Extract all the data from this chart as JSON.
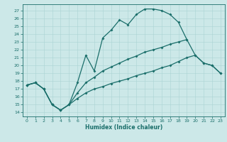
{
  "xlabel": "Humidex (Indice chaleur)",
  "bg_color": "#cce8e8",
  "line_color": "#1a6e6a",
  "grid_color": "#aad4d4",
  "xlim": [
    -0.5,
    23.5
  ],
  "ylim": [
    13.5,
    27.8
  ],
  "yticks": [
    14,
    15,
    16,
    17,
    18,
    19,
    20,
    21,
    22,
    23,
    24,
    25,
    26,
    27
  ],
  "xticks": [
    0,
    1,
    2,
    3,
    4,
    5,
    6,
    7,
    8,
    9,
    10,
    11,
    12,
    13,
    14,
    15,
    16,
    17,
    18,
    19,
    20,
    21,
    22,
    23
  ],
  "line1_x": [
    0,
    1,
    2,
    3,
    4,
    5,
    6,
    7,
    8,
    9,
    10,
    11,
    12,
    13,
    14,
    15,
    16,
    17,
    18,
    19
  ],
  "line1_y": [
    17.5,
    17.8,
    17.0,
    15.0,
    14.3,
    15.0,
    17.8,
    21.3,
    19.3,
    23.5,
    24.5,
    25.8,
    25.2,
    26.5,
    27.2,
    27.2,
    27.0,
    26.5,
    25.5,
    23.3
  ],
  "line2_x": [
    0,
    1,
    2,
    3,
    4,
    5,
    6,
    7,
    8,
    9,
    10,
    11,
    12,
    13,
    14,
    15,
    16,
    17,
    18,
    19,
    20,
    21,
    22,
    23
  ],
  "line2_y": [
    17.5,
    17.8,
    17.0,
    15.0,
    14.3,
    15.0,
    16.5,
    17.8,
    18.5,
    19.3,
    19.8,
    20.3,
    20.8,
    21.2,
    21.7,
    22.0,
    22.3,
    22.7,
    23.0,
    23.3,
    21.3,
    20.3,
    20.0,
    19.0
  ],
  "line3_x": [
    0,
    1,
    2,
    3,
    4,
    5,
    6,
    7,
    8,
    9,
    10,
    11,
    12,
    13,
    14,
    15,
    16,
    17,
    18,
    19,
    20,
    21,
    22,
    23
  ],
  "line3_y": [
    17.5,
    17.8,
    17.0,
    15.0,
    14.3,
    15.0,
    15.8,
    16.5,
    17.0,
    17.3,
    17.7,
    18.0,
    18.3,
    18.7,
    19.0,
    19.3,
    19.7,
    20.0,
    20.5,
    21.0,
    21.3,
    20.3,
    20.0,
    19.0
  ],
  "linewidth": 0.9,
  "markersize": 2.0
}
